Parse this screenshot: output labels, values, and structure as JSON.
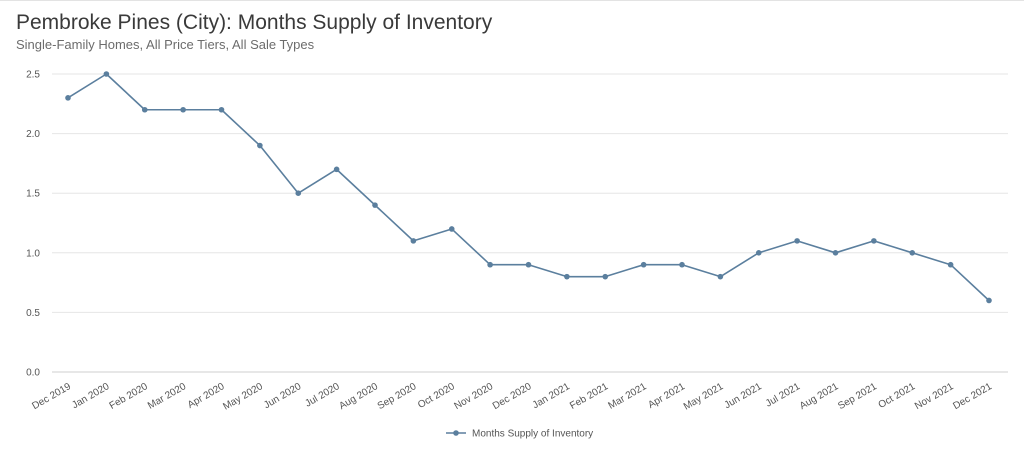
{
  "header": {
    "title": "Pembroke Pines (City): Months Supply of Inventory",
    "subtitle": "Single-Family Homes, All Price Tiers, All Sale Types"
  },
  "chart_data": {
    "type": "line",
    "title": "Pembroke Pines (City): Months Supply of Inventory",
    "subtitle": "Single-Family Homes, All Price Tiers, All Sale Types",
    "xlabel": "",
    "ylabel": "",
    "categories": [
      "Dec 2019",
      "Jan 2020",
      "Feb 2020",
      "Mar 2020",
      "Apr 2020",
      "May 2020",
      "Jun 2020",
      "Jul 2020",
      "Aug 2020",
      "Sep 2020",
      "Oct 2020",
      "Nov 2020",
      "Dec 2020",
      "Jan 2021",
      "Feb 2021",
      "Mar 2021",
      "Apr 2021",
      "May 2021",
      "Jun 2021",
      "Jul 2021",
      "Aug 2021",
      "Sep 2021",
      "Oct 2021",
      "Nov 2021",
      "Dec 2021"
    ],
    "series": [
      {
        "name": "Months Supply of Inventory",
        "color": "#5b7f9e",
        "values": [
          2.3,
          2.5,
          2.2,
          2.2,
          2.2,
          1.9,
          1.5,
          1.7,
          1.4,
          1.1,
          1.2,
          0.9,
          0.9,
          0.8,
          0.8,
          0.9,
          0.9,
          0.8,
          1.0,
          1.1,
          1.0,
          1.1,
          1.0,
          0.9,
          0.6
        ]
      }
    ],
    "ylim": [
      0,
      2.5
    ],
    "yticks": [
      "0.0",
      "0.5",
      "1.0",
      "1.5",
      "2.0",
      "2.5"
    ],
    "grid": true,
    "legend_position": "bottom-center"
  }
}
